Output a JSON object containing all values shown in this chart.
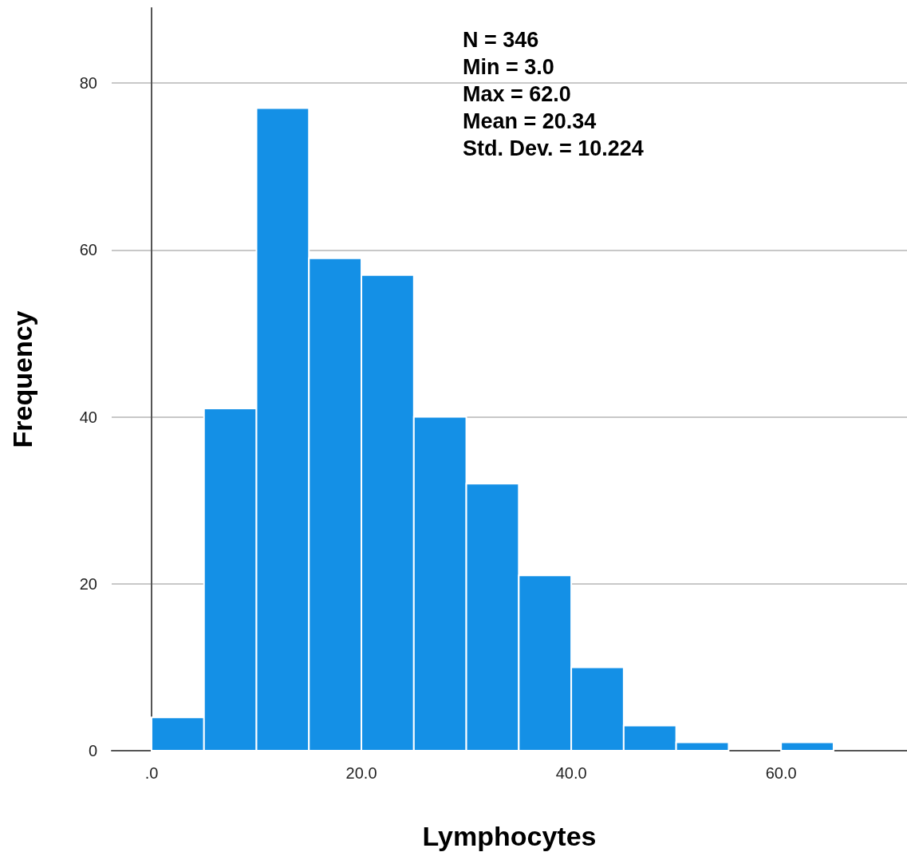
{
  "chart_data": {
    "type": "histogram",
    "xlabel": "Lymphocytes",
    "ylabel": "Frequency",
    "bins": [
      0,
      5,
      10,
      15,
      20,
      25,
      30,
      35,
      40,
      45,
      50,
      55,
      60,
      65
    ],
    "values": [
      4,
      41,
      77,
      59,
      57,
      40,
      32,
      21,
      10,
      3,
      1,
      0,
      1
    ],
    "color": "#1490e6",
    "xlim": [
      -3.8,
      72
    ],
    "xticks": [
      {
        "value": 0,
        "label": ".0"
      },
      {
        "value": 20,
        "label": "20.0"
      },
      {
        "value": 40,
        "label": "40.0"
      },
      {
        "value": 60,
        "label": "60.0"
      }
    ],
    "ylim": [
      0,
      89
    ],
    "yticks": [
      0,
      20,
      40,
      60,
      80
    ],
    "grid": "y",
    "annotations": [
      "N = 346",
      "Min = 3.0",
      "Max = 62.0",
      "Mean = 20.34",
      "Std. Dev. = 10.224"
    ]
  }
}
